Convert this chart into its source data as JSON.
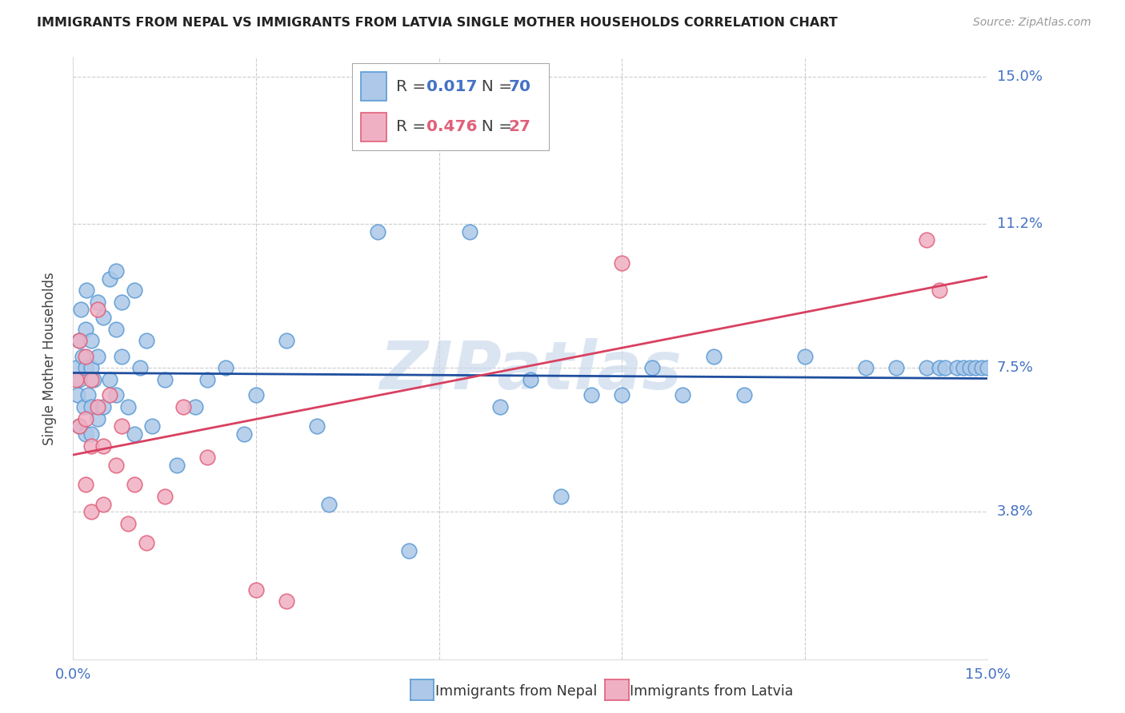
{
  "title": "IMMIGRANTS FROM NEPAL VS IMMIGRANTS FROM LATVIA SINGLE MOTHER HOUSEHOLDS CORRELATION CHART",
  "source": "Source: ZipAtlas.com",
  "ylabel": "Single Mother Households",
  "xlim": [
    0.0,
    0.15
  ],
  "ylim": [
    0.0,
    0.155
  ],
  "ytick_vals": [
    0.038,
    0.075,
    0.112,
    0.15
  ],
  "ytick_labels": [
    "3.8%",
    "7.5%",
    "11.2%",
    "15.0%"
  ],
  "xtick_vals": [
    0.0,
    0.03,
    0.06,
    0.09,
    0.12,
    0.15
  ],
  "xtick_labels": [
    "0.0%",
    "",
    "",
    "",
    "",
    "15.0%"
  ],
  "nepal_fill": "#adc8e8",
  "nepal_edge": "#5b9bd5",
  "latvia_fill": "#f0b0c4",
  "latvia_edge": "#e0607a",
  "trend_nepal_color": "#1f4e9e",
  "trend_latvia_color": "#d94060",
  "watermark": "ZIPatlas",
  "watermark_color": "#c8d8ec",
  "nepal_R": "0.017",
  "nepal_N": "70",
  "latvia_R": "0.476",
  "latvia_N": "27",
  "nepal_x": [
    0.0005,
    0.0008,
    0.001,
    0.001,
    0.001,
    0.0012,
    0.0015,
    0.0018,
    0.002,
    0.002,
    0.002,
    0.0022,
    0.0025,
    0.003,
    0.003,
    0.003,
    0.003,
    0.0033,
    0.004,
    0.004,
    0.004,
    0.005,
    0.005,
    0.006,
    0.006,
    0.007,
    0.007,
    0.007,
    0.008,
    0.008,
    0.009,
    0.01,
    0.01,
    0.011,
    0.012,
    0.013,
    0.015,
    0.017,
    0.02,
    0.022,
    0.025,
    0.028,
    0.03,
    0.035,
    0.04,
    0.042,
    0.05,
    0.055,
    0.065,
    0.07,
    0.075,
    0.08,
    0.085,
    0.09,
    0.095,
    0.1,
    0.105,
    0.11,
    0.12,
    0.13,
    0.135,
    0.14,
    0.142,
    0.143,
    0.145,
    0.146,
    0.147,
    0.148,
    0.149,
    0.15
  ],
  "nepal_y": [
    0.075,
    0.068,
    0.082,
    0.072,
    0.06,
    0.09,
    0.078,
    0.065,
    0.085,
    0.075,
    0.058,
    0.095,
    0.068,
    0.082,
    0.075,
    0.065,
    0.058,
    0.072,
    0.092,
    0.078,
    0.062,
    0.088,
    0.065,
    0.098,
    0.072,
    0.1,
    0.085,
    0.068,
    0.092,
    0.078,
    0.065,
    0.095,
    0.058,
    0.075,
    0.082,
    0.06,
    0.072,
    0.05,
    0.065,
    0.072,
    0.075,
    0.058,
    0.068,
    0.082,
    0.06,
    0.04,
    0.11,
    0.028,
    0.11,
    0.065,
    0.072,
    0.042,
    0.068,
    0.068,
    0.075,
    0.068,
    0.078,
    0.068,
    0.078,
    0.075,
    0.075,
    0.075,
    0.075,
    0.075,
    0.075,
    0.075,
    0.075,
    0.075,
    0.075,
    0.075
  ],
  "latvia_x": [
    0.0005,
    0.001,
    0.001,
    0.002,
    0.002,
    0.002,
    0.003,
    0.003,
    0.003,
    0.004,
    0.004,
    0.005,
    0.005,
    0.006,
    0.007,
    0.008,
    0.009,
    0.01,
    0.012,
    0.015,
    0.018,
    0.022,
    0.03,
    0.035,
    0.09,
    0.14,
    0.142
  ],
  "latvia_y": [
    0.072,
    0.082,
    0.06,
    0.078,
    0.062,
    0.045,
    0.072,
    0.055,
    0.038,
    0.09,
    0.065,
    0.055,
    0.04,
    0.068,
    0.05,
    0.06,
    0.035,
    0.045,
    0.03,
    0.042,
    0.065,
    0.052,
    0.018,
    0.015,
    0.102,
    0.108,
    0.095
  ]
}
